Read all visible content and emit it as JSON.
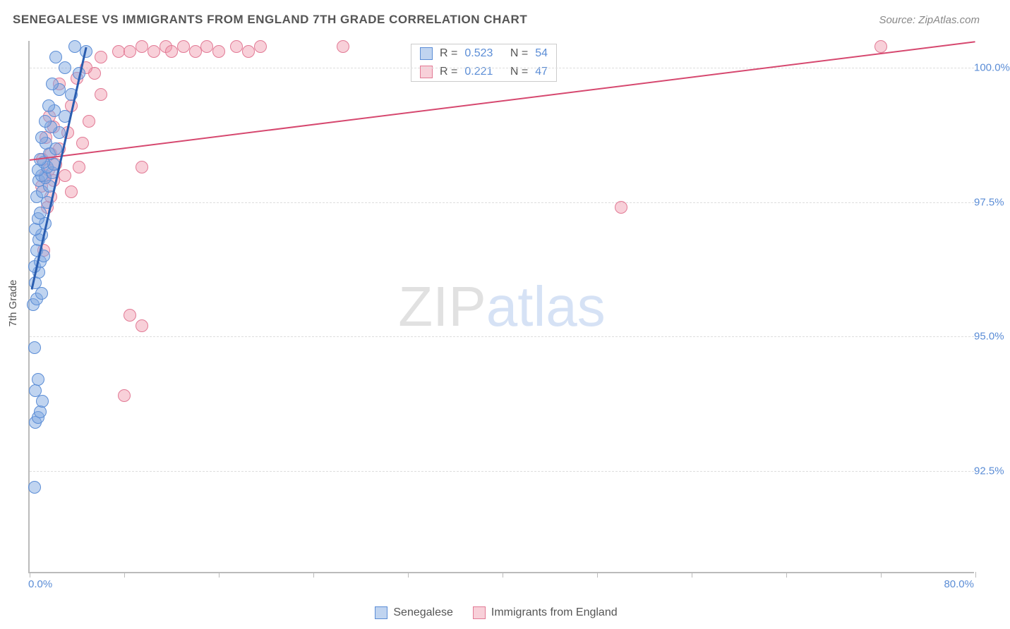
{
  "title": "SENEGALESE VS IMMIGRANTS FROM ENGLAND 7TH GRADE CORRELATION CHART",
  "source": "Source: ZipAtlas.com",
  "y_axis_title": "7th Grade",
  "watermark": {
    "zip": "ZIP",
    "atlas": "atlas"
  },
  "colors": {
    "blue_fill": "rgba(130,170,225,0.5)",
    "blue_stroke": "#5b8dd6",
    "pink_fill": "rgba(240,150,170,0.45)",
    "pink_stroke": "#e27a95",
    "trend_blue": "#2a5db0",
    "trend_pink": "#d6486f",
    "tick_text": "#5b8dd6",
    "title_text": "#555555"
  },
  "chart": {
    "type": "scatter",
    "xlim": [
      0,
      80
    ],
    "ylim": [
      90.6,
      100.5
    ],
    "yticks": [
      {
        "v": 92.5,
        "label": "92.5%"
      },
      {
        "v": 95.0,
        "label": "95.0%"
      },
      {
        "v": 97.5,
        "label": "97.5%"
      },
      {
        "v": 100.0,
        "label": "100.0%"
      }
    ],
    "xticks": [
      0,
      8,
      16,
      24,
      32,
      40,
      48,
      56,
      64,
      72,
      80
    ],
    "xlabels": [
      {
        "v": 0,
        "label": "0.0%"
      },
      {
        "v": 80,
        "label": "80.0%"
      }
    ],
    "marker_radius": 9,
    "marker_stroke_width": 1
  },
  "series": {
    "senegalese": {
      "label": "Senegalese",
      "R": "0.523",
      "N": "54",
      "trend": {
        "x1": 0.2,
        "y1": 95.9,
        "x2": 4.8,
        "y2": 100.4
      },
      "points": [
        [
          0.4,
          92.2
        ],
        [
          0.5,
          93.4
        ],
        [
          0.7,
          93.5
        ],
        [
          0.9,
          93.6
        ],
        [
          1.1,
          93.8
        ],
        [
          0.5,
          94.0
        ],
        [
          0.7,
          94.2
        ],
        [
          0.4,
          94.8
        ],
        [
          0.3,
          95.6
        ],
        [
          0.6,
          95.7
        ],
        [
          1.0,
          95.8
        ],
        [
          0.5,
          96.0
        ],
        [
          0.8,
          96.2
        ],
        [
          0.4,
          96.3
        ],
        [
          0.9,
          96.4
        ],
        [
          1.2,
          96.5
        ],
        [
          0.6,
          96.6
        ],
        [
          0.8,
          96.8
        ],
        [
          1.0,
          96.9
        ],
        [
          0.5,
          97.0
        ],
        [
          1.3,
          97.1
        ],
        [
          0.7,
          97.2
        ],
        [
          0.9,
          97.3
        ],
        [
          1.5,
          97.5
        ],
        [
          0.6,
          97.6
        ],
        [
          1.1,
          97.7
        ],
        [
          1.7,
          97.8
        ],
        [
          0.8,
          97.9
        ],
        [
          1.3,
          97.95
        ],
        [
          1.0,
          98.0
        ],
        [
          1.9,
          98.05
        ],
        [
          0.7,
          98.1
        ],
        [
          1.5,
          98.15
        ],
        [
          2.0,
          98.2
        ],
        [
          1.2,
          98.25
        ],
        [
          0.9,
          98.3
        ],
        [
          1.7,
          98.4
        ],
        [
          2.2,
          98.5
        ],
        [
          1.4,
          98.6
        ],
        [
          1.0,
          98.7
        ],
        [
          2.5,
          98.8
        ],
        [
          1.8,
          98.9
        ],
        [
          1.3,
          99.0
        ],
        [
          3.0,
          99.1
        ],
        [
          2.1,
          99.2
        ],
        [
          1.6,
          99.3
        ],
        [
          3.5,
          99.5
        ],
        [
          2.5,
          99.6
        ],
        [
          1.9,
          99.7
        ],
        [
          4.2,
          99.9
        ],
        [
          3.0,
          100.0
        ],
        [
          2.2,
          100.2
        ],
        [
          4.8,
          100.3
        ],
        [
          3.8,
          100.4
        ]
      ]
    },
    "england": {
      "label": "Immigrants from England",
      "R": "0.221",
      "N": "47",
      "trend": {
        "x1": 0,
        "y1": 98.3,
        "x2": 80,
        "y2": 100.5
      },
      "points": [
        [
          8.0,
          93.9
        ],
        [
          9.5,
          95.2
        ],
        [
          8.5,
          95.4
        ],
        [
          1.2,
          96.6
        ],
        [
          1.5,
          97.4
        ],
        [
          1.8,
          97.6
        ],
        [
          3.5,
          97.7
        ],
        [
          1.0,
          97.8
        ],
        [
          2.0,
          97.9
        ],
        [
          1.3,
          98.0
        ],
        [
          3.0,
          98.0
        ],
        [
          1.6,
          98.1
        ],
        [
          4.2,
          98.15
        ],
        [
          9.5,
          98.15
        ],
        [
          2.2,
          98.2
        ],
        [
          1.1,
          98.3
        ],
        [
          1.8,
          98.4
        ],
        [
          2.5,
          98.5
        ],
        [
          4.5,
          98.6
        ],
        [
          1.4,
          98.7
        ],
        [
          3.2,
          98.8
        ],
        [
          2.0,
          98.9
        ],
        [
          5.0,
          99.0
        ],
        [
          1.7,
          99.1
        ],
        [
          3.5,
          99.3
        ],
        [
          6.0,
          99.5
        ],
        [
          2.5,
          99.7
        ],
        [
          4.0,
          99.8
        ],
        [
          50.0,
          97.4
        ],
        [
          72.0,
          100.4
        ],
        [
          26.5,
          100.4
        ],
        [
          7.5,
          100.3
        ],
        [
          8.5,
          100.3
        ],
        [
          9.5,
          100.4
        ],
        [
          10.5,
          100.3
        ],
        [
          11.5,
          100.4
        ],
        [
          12.0,
          100.3
        ],
        [
          13.0,
          100.4
        ],
        [
          14.0,
          100.3
        ],
        [
          15.0,
          100.4
        ],
        [
          16.0,
          100.3
        ],
        [
          17.5,
          100.4
        ],
        [
          18.5,
          100.3
        ],
        [
          19.5,
          100.4
        ],
        [
          6.0,
          100.2
        ],
        [
          5.5,
          99.9
        ],
        [
          4.8,
          100.0
        ]
      ]
    }
  },
  "stats_labels": {
    "R": "R =",
    "N": "N ="
  }
}
